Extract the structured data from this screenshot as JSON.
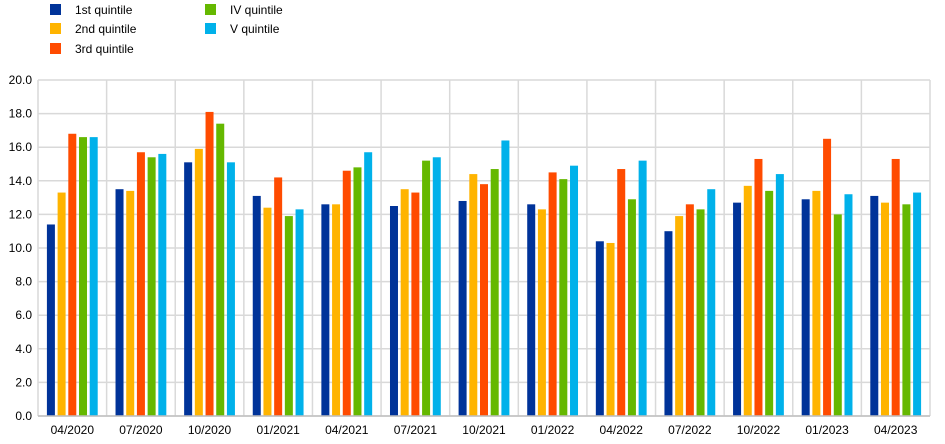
{
  "chart_data": {
    "type": "bar",
    "title": "",
    "xlabel": "",
    "ylabel": "",
    "ylim": [
      0,
      20
    ],
    "yticks": [
      "0.0",
      "2.0",
      "4.0",
      "6.0",
      "8.0",
      "10.0",
      "12.0",
      "14.0",
      "16.0",
      "18.0",
      "20.0"
    ],
    "grid": true,
    "legend_position": "top-left",
    "categories": [
      "04/2020",
      "07/2020",
      "10/2020",
      "01/2021",
      "04/2021",
      "07/2021",
      "10/2021",
      "01/2022",
      "04/2022",
      "07/2022",
      "10/2022",
      "01/2023",
      "04/2023"
    ],
    "series": [
      {
        "name": "1st quintile",
        "color": "#003399",
        "values": [
          11.4,
          13.5,
          15.1,
          13.1,
          12.6,
          12.5,
          12.8,
          12.6,
          10.4,
          11.0,
          12.7,
          12.9,
          13.1
        ]
      },
      {
        "name": "2nd quintile",
        "color": "#FFB400",
        "values": [
          13.3,
          13.4,
          15.9,
          12.4,
          12.6,
          13.5,
          14.4,
          12.3,
          10.3,
          11.9,
          13.7,
          13.4,
          12.7
        ]
      },
      {
        "name": "3rd quintile",
        "color": "#FF4B00",
        "values": [
          16.8,
          15.7,
          18.1,
          14.2,
          14.6,
          13.3,
          13.8,
          14.5,
          14.7,
          12.6,
          15.3,
          16.5,
          15.3
        ]
      },
      {
        "name": "IV quintile",
        "color": "#65B800",
        "values": [
          16.6,
          15.4,
          17.4,
          11.9,
          14.8,
          15.2,
          14.7,
          14.1,
          12.9,
          12.3,
          13.4,
          12.0,
          12.6
        ]
      },
      {
        "name": "V quintile",
        "color": "#00B1EA",
        "values": [
          16.6,
          15.6,
          15.1,
          12.3,
          15.7,
          15.4,
          16.4,
          14.9,
          15.2,
          13.5,
          14.4,
          13.2,
          13.3
        ]
      }
    ]
  }
}
